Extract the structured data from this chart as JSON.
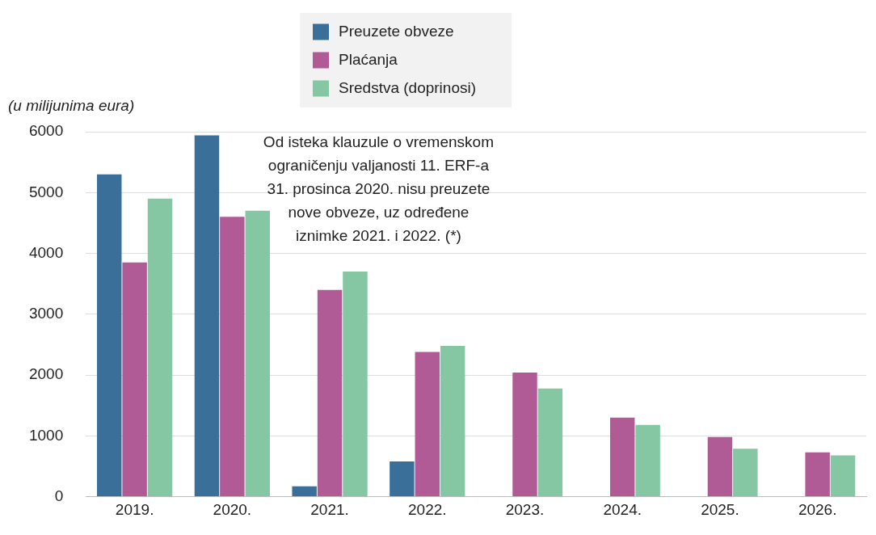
{
  "chart_data": {
    "type": "bar",
    "ylabel": "(u milijunima eura)",
    "categories": [
      "2019.",
      "2020.",
      "2021.",
      "2022.",
      "2023.",
      "2024.",
      "2025.",
      "2026."
    ],
    "series": [
      {
        "name": "Preuzete obveze",
        "color": "#3a6f99",
        "values": [
          5300,
          5940,
          170,
          580,
          null,
          null,
          null,
          null
        ]
      },
      {
        "name": "Plaćanja",
        "color": "#b05a96",
        "values": [
          3850,
          4600,
          3400,
          2380,
          2040,
          1300,
          980,
          730
        ]
      },
      {
        "name": "Sredstva (doprinosi)",
        "color": "#84c7a2",
        "values": [
          4900,
          4700,
          3700,
          2480,
          1780,
          1180,
          790,
          680
        ]
      }
    ],
    "ylim": [
      0,
      6000
    ],
    "yticks": [
      0,
      1000,
      2000,
      3000,
      4000,
      5000,
      6000
    ],
    "grid": "y",
    "legend": "top",
    "annotations": [
      "Od isteka klauzule o vremenskom\nograničenju valjanosti 11. ERF-a\n31. prosinca 2020. nisu preuzete\nnove obveze, uz određene\niznimke 2021. i 2022. (*)"
    ]
  }
}
